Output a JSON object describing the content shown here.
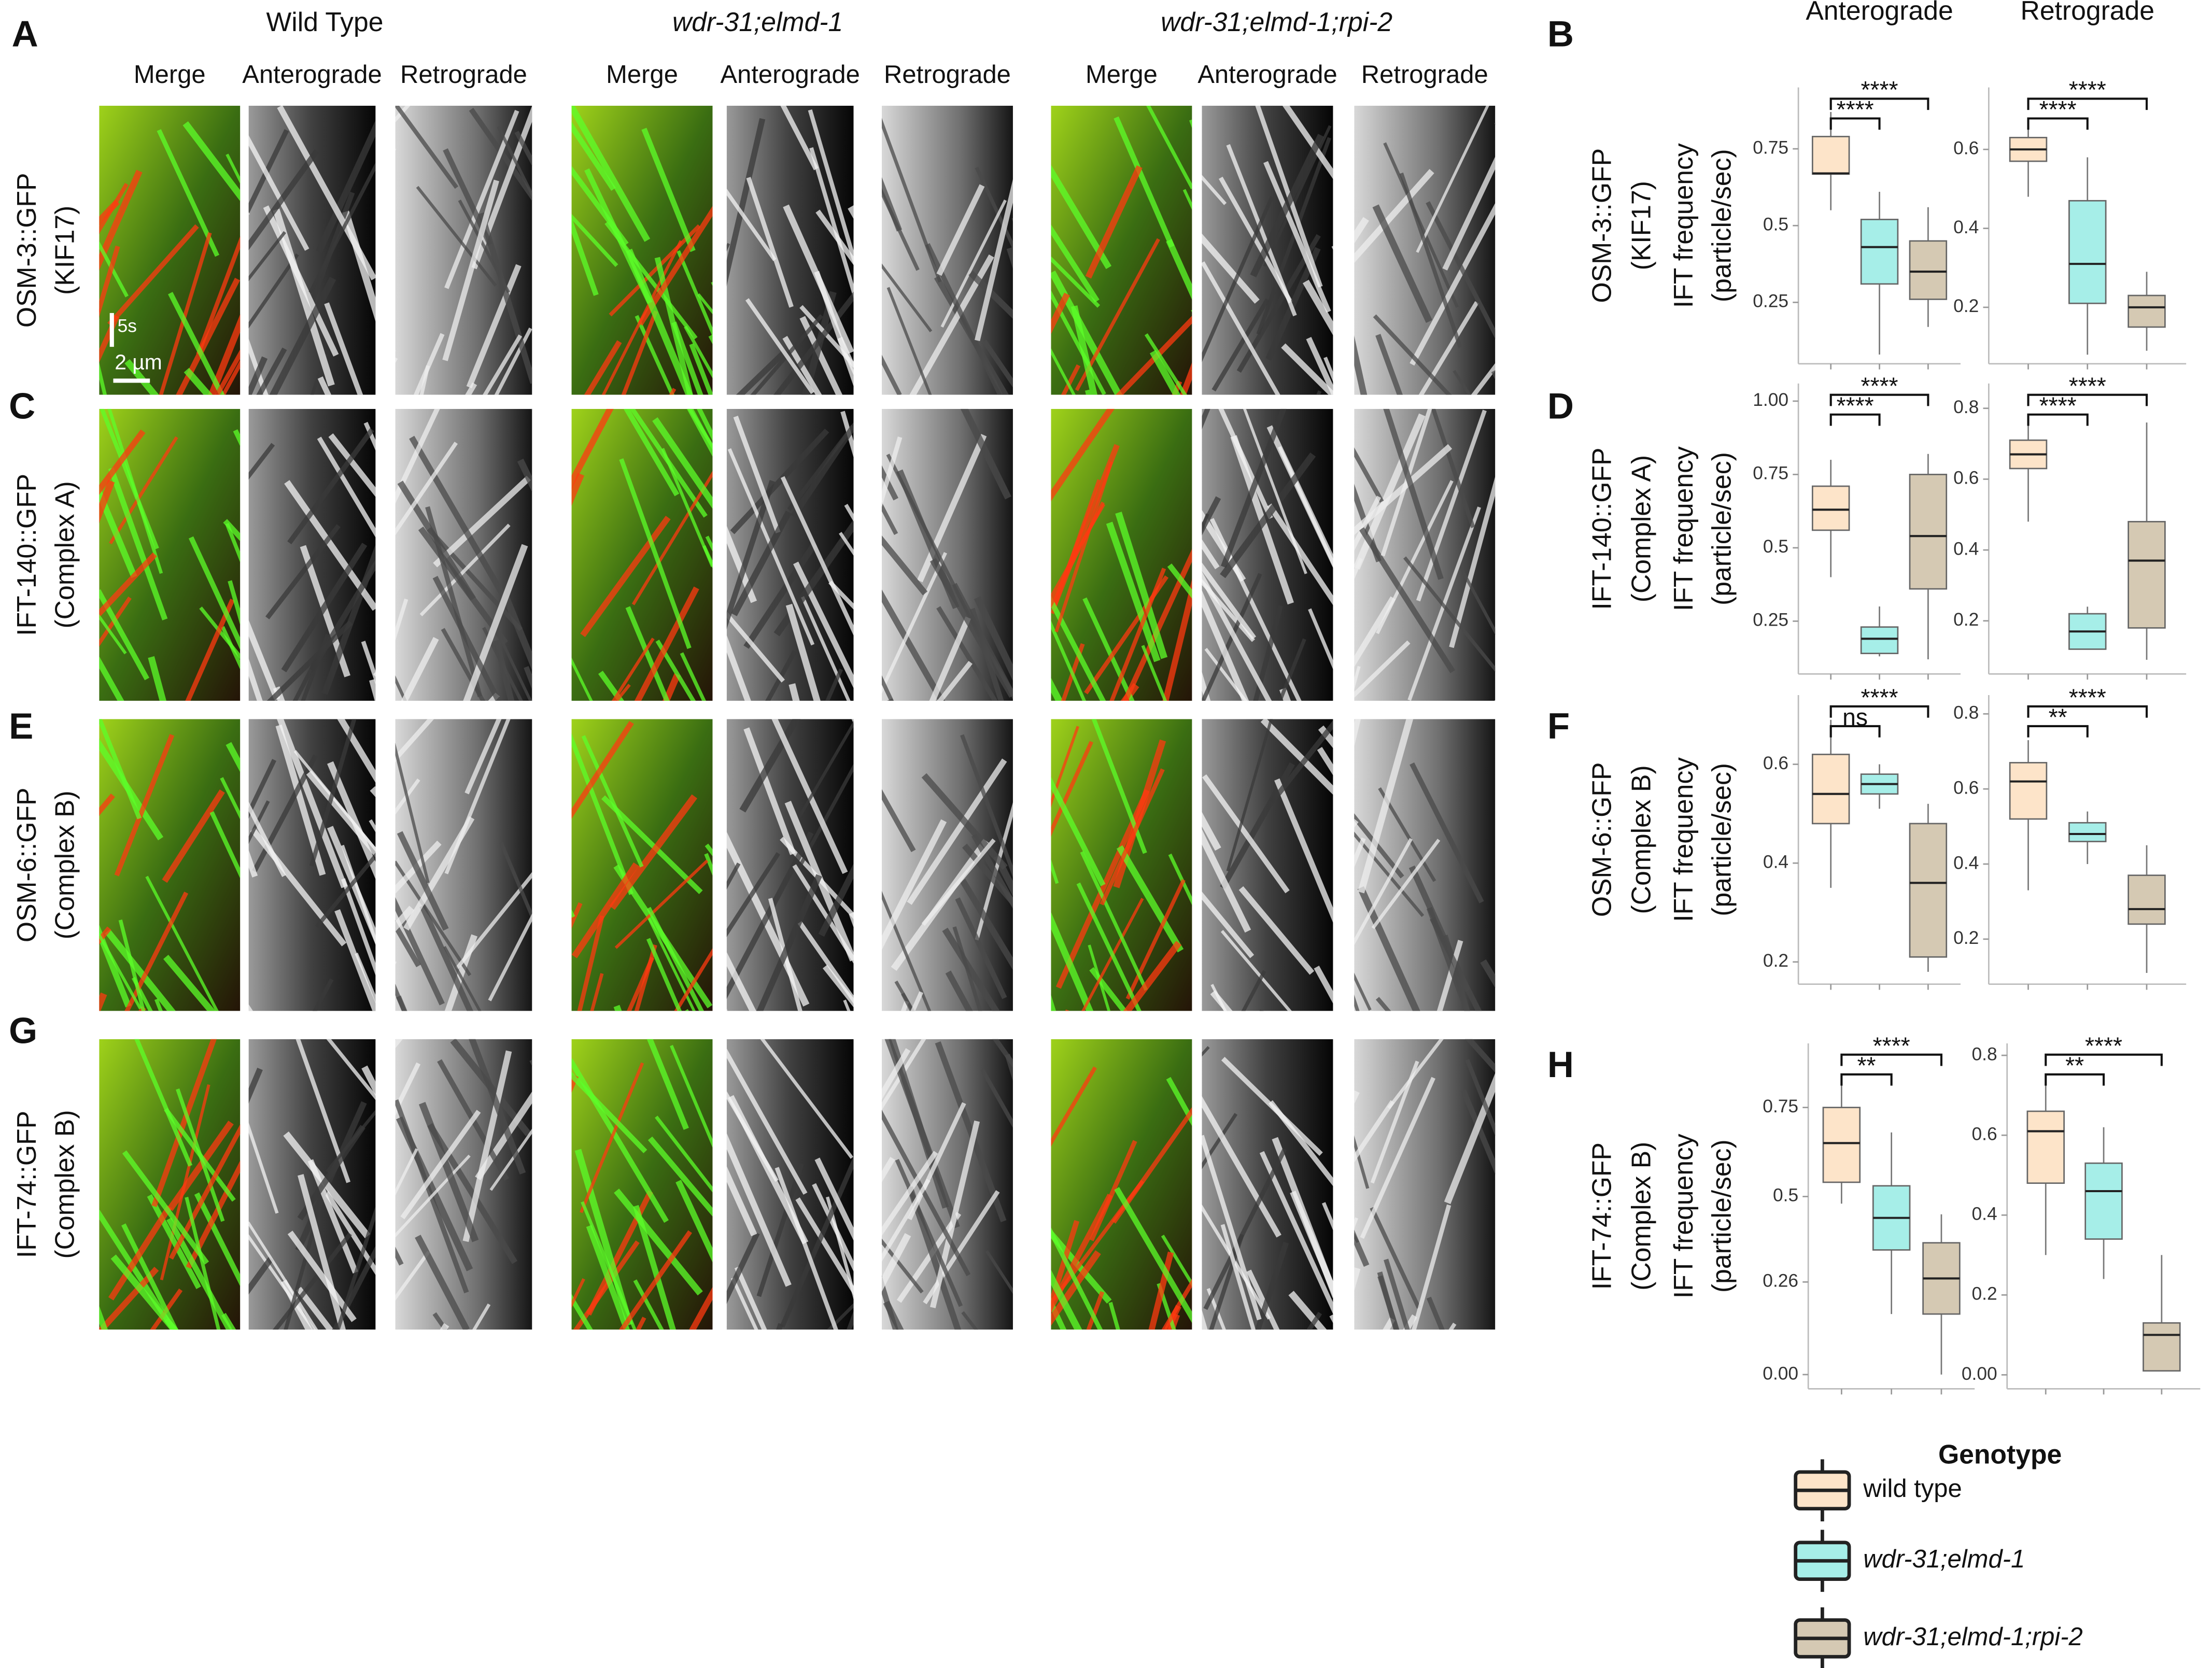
{
  "panels": [
    "A",
    "B",
    "C",
    "D",
    "E",
    "F",
    "G",
    "H"
  ],
  "kymographs": {
    "genotypes": [
      "Wild Type",
      "wdr-31;elmd-1",
      "wdr-31;elmd-1;rpi-2"
    ],
    "channels": [
      "Merge",
      "Anterograde",
      "Retrograde"
    ],
    "rows": [
      [
        "OSM-3::GFP",
        "(KIF17)"
      ],
      [
        "IFT-140::GFP",
        "(Complex A)"
      ],
      [
        "OSM-6::GFP",
        "(Complex B)"
      ],
      [
        "IFT-74::GFP",
        "(Complex B)"
      ]
    ],
    "scale": [
      "5s",
      "2 µm"
    ]
  },
  "chart_data": [
    {
      "type": "box",
      "title": "Anterograde",
      "ylabel": [
        "IFT frequency",
        "(particle/sec)"
      ],
      "ylim": [
        0.05,
        0.95
      ],
      "yticks": [
        0.25,
        0.5,
        0.75
      ],
      "boxes": [
        {
          "min": 0.55,
          "q1": 0.668,
          "median": 0.67,
          "q3": 0.79,
          "max": 0.87
        },
        {
          "min": 0.08,
          "q1": 0.31,
          "median": 0.43,
          "q3": 0.52,
          "max": 0.61
        },
        {
          "min": 0.17,
          "q1": 0.26,
          "median": 0.35,
          "q3": 0.45,
          "max": 0.56
        }
      ],
      "annotations": [
        "****",
        "****"
      ]
    },
    {
      "type": "box",
      "title": "Retrograde",
      "ylim": [
        0.057,
        0.757
      ],
      "yticks": [
        0.2,
        0.4,
        0.6
      ],
      "boxes": [
        {
          "min": 0.48,
          "q1": 0.57,
          "median": 0.6,
          "q3": 0.63,
          "max": 0.68
        },
        {
          "min": 0.08,
          "q1": 0.21,
          "median": 0.31,
          "q3": 0.47,
          "max": 0.58
        },
        {
          "min": 0.09,
          "q1": 0.15,
          "median": 0.2,
          "q3": 0.23,
          "max": 0.29
        }
      ],
      "annotations": [
        "****",
        "****"
      ]
    },
    {
      "type": "box",
      "ylabel": [
        "IFT frequency",
        "(particle/sec)"
      ],
      "ylim": [
        0.07,
        1.06
      ],
      "yticks": [
        0.25,
        0.5,
        0.75,
        {
          "value": 1,
          "label": "1.00"
        }
      ],
      "boxes": [
        {
          "min": 0.4,
          "q1": 0.56,
          "median": 0.63,
          "q3": 0.71,
          "max": 0.8
        },
        {
          "min": 0.13,
          "q1": 0.14,
          "median": 0.19,
          "q3": 0.23,
          "max": 0.3
        },
        {
          "min": 0.12,
          "q1": 0.36,
          "median": 0.54,
          "q3": 0.75,
          "max": 0.82
        }
      ],
      "annotations": [
        "****",
        "****"
      ]
    },
    {
      "type": "box",
      "ylim": [
        0.05,
        0.87
      ],
      "yticks": [
        0.2,
        0.4,
        0.6,
        0.8
      ],
      "boxes": [
        {
          "min": 0.48,
          "q1": 0.63,
          "median": 0.67,
          "q3": 0.71,
          "max": 0.78
        },
        {
          "min": 0.12,
          "q1": 0.12,
          "median": 0.17,
          "q3": 0.22,
          "max": 0.24
        },
        {
          "min": 0.09,
          "q1": 0.18,
          "median": 0.37,
          "q3": 0.48,
          "max": 0.76
        }
      ],
      "annotations": [
        "****",
        "****"
      ]
    },
    {
      "type": "box",
      "ylabel": [
        "IFT frequency",
        "(particle/sec)"
      ],
      "ylim": [
        0.155,
        0.74
      ],
      "yticks": [
        0.2,
        0.4,
        0.6
      ],
      "boxes": [
        {
          "min": 0.35,
          "q1": 0.48,
          "median": 0.54,
          "q3": 0.62,
          "max": 0.69
        },
        {
          "min": 0.51,
          "q1": 0.54,
          "median": 0.56,
          "q3": 0.58,
          "max": 0.6
        },
        {
          "min": 0.18,
          "q1": 0.21,
          "median": 0.36,
          "q3": 0.48,
          "max": 0.52
        }
      ],
      "annotations": [
        "ns",
        "****"
      ]
    },
    {
      "type": "box",
      "ylim": [
        0.08,
        0.85
      ],
      "yticks": [
        0.2,
        0.4,
        0.6,
        0.8
      ],
      "boxes": [
        {
          "min": 0.33,
          "q1": 0.52,
          "median": 0.62,
          "q3": 0.67,
          "max": 0.73
        },
        {
          "min": 0.4,
          "q1": 0.46,
          "median": 0.48,
          "q3": 0.51,
          "max": 0.54
        },
        {
          "min": 0.11,
          "q1": 0.24,
          "median": 0.28,
          "q3": 0.37,
          "max": 0.45
        }
      ],
      "annotations": [
        "**",
        "****"
      ]
    },
    {
      "type": "box",
      "ylabel": [
        "IFT frequency",
        "(particle/sec)"
      ],
      "ylim": [
        -0.04,
        0.93
      ],
      "yticks": [
        {
          "value": 0,
          "label": "0.00"
        },
        0.26,
        0.5,
        0.75
      ],
      "boxes": [
        {
          "min": 0.48,
          "q1": 0.54,
          "median": 0.65,
          "q3": 0.75,
          "max": 0.83
        },
        {
          "min": 0.17,
          "q1": 0.35,
          "median": 0.44,
          "q3": 0.53,
          "max": 0.68
        },
        {
          "min": 0,
          "q1": 0.17,
          "median": 0.27,
          "q3": 0.37,
          "max": 0.45
        }
      ],
      "annotations": [
        "**",
        "****"
      ]
    },
    {
      "type": "box",
      "ylim": [
        -0.035,
        0.83
      ],
      "yticks": [
        {
          "value": 0,
          "label": "0.00"
        },
        0.2,
        0.4,
        0.6,
        0.8
      ],
      "boxes": [
        {
          "min": 0.3,
          "q1": 0.48,
          "median": 0.61,
          "q3": 0.66,
          "max": 0.74
        },
        {
          "min": 0.24,
          "q1": 0.34,
          "median": 0.46,
          "q3": 0.53,
          "max": 0.62
        },
        {
          "min": 0.01,
          "q1": 0.01,
          "median": 0.1,
          "q3": 0.13,
          "max": 0.3
        }
      ],
      "annotations": [
        "**",
        "****"
      ]
    }
  ],
  "legend": {
    "title": "Genotype",
    "entries": [
      {
        "name": "wild type",
        "color": "#fde4c9"
      },
      {
        "name": "wdr-31;elmd-1",
        "color": "#a6eee8"
      },
      {
        "name": "wdr-31;elmd-1;rpi-2",
        "color": "#d5c9b3"
      }
    ]
  }
}
